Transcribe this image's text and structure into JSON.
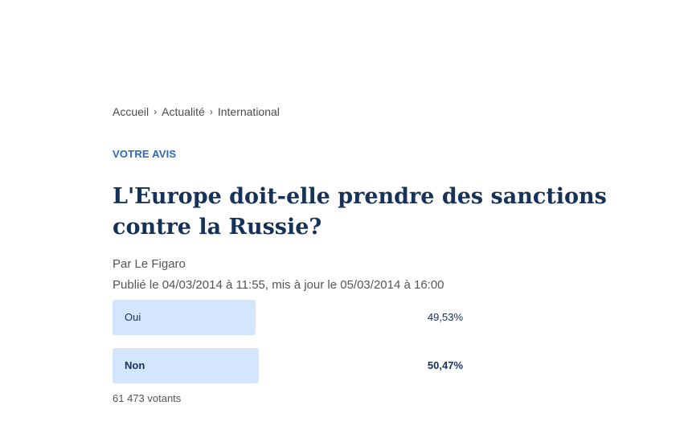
{
  "breadcrumb": {
    "items": [
      "Accueil",
      "Actualité",
      "International"
    ],
    "separator": "›"
  },
  "kicker": "VOTRE AVIS",
  "title": "L'Europe doit-elle prendre des sanctions contre la Russie?",
  "author": "Par Le Figaro",
  "dateline": "Publié le 04/03/2014 à 11:55, mis à jour le 05/03/2014 à 16:00",
  "poll": {
    "options": [
      {
        "label": "Oui",
        "percent": "49,53%",
        "share": 0.4953,
        "winner": false
      },
      {
        "label": "Non",
        "percent": "50,47%",
        "share": 0.5047,
        "winner": true
      }
    ],
    "votes": "61 473 votants"
  },
  "colors": {
    "accent": "#2a6ab8",
    "title": "#163258",
    "bar": "#d3e6fc"
  }
}
